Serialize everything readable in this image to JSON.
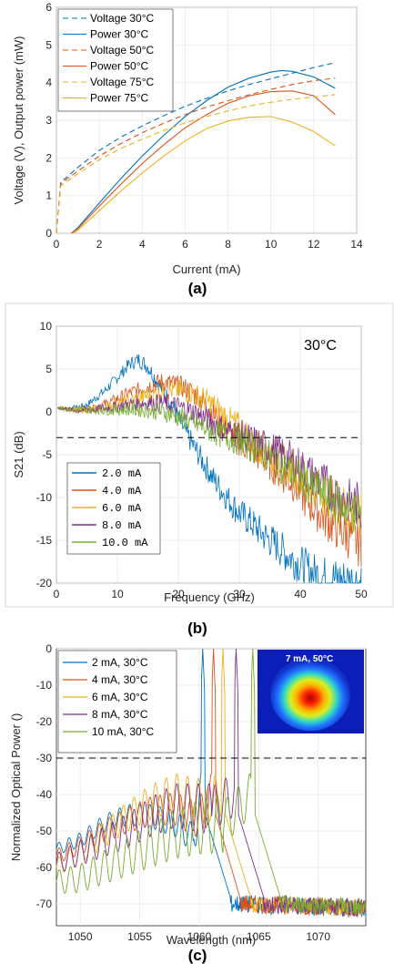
{
  "chart_data": [
    {
      "type": "line",
      "panel_label": "(a)",
      "xlabel": "Current (mA)",
      "ylabel": "Voltage (V), Output power (mW)",
      "xlim": [
        0,
        14
      ],
      "ylim": [
        0,
        6
      ],
      "xticks": [
        "0",
        "2",
        "4",
        "6",
        "8",
        "10",
        "12",
        "14"
      ],
      "yticks": [
        "0",
        "1",
        "2",
        "3",
        "4",
        "5",
        "6"
      ],
      "grid": true,
      "legend_position": "top-left",
      "series": [
        {
          "name": "Voltage 30°C",
          "color": "#0072BD",
          "dash": true,
          "x": [
            0,
            0.2,
            0.5,
            1,
            2,
            3,
            4,
            5,
            6,
            7,
            8,
            9,
            10,
            11,
            12,
            13
          ],
          "y": [
            0,
            1.35,
            1.5,
            1.75,
            2.2,
            2.55,
            2.85,
            3.12,
            3.37,
            3.58,
            3.78,
            3.95,
            4.1,
            4.25,
            4.4,
            4.53
          ]
        },
        {
          "name": "Power 30°C",
          "color": "#0072BD",
          "dash": false,
          "x": [
            0.7,
            1,
            2,
            3,
            4,
            5,
            6,
            7,
            8,
            9,
            10,
            10.5,
            11,
            12,
            13
          ],
          "y": [
            0,
            0.15,
            0.8,
            1.45,
            2.05,
            2.6,
            3.1,
            3.52,
            3.88,
            4.12,
            4.28,
            4.32,
            4.3,
            4.15,
            3.85
          ]
        },
        {
          "name": "Voltage 50°C",
          "color": "#D95319",
          "dash": true,
          "x": [
            0,
            0.2,
            0.5,
            1,
            2,
            3,
            4,
            5,
            6,
            7,
            8,
            9,
            10,
            11,
            12,
            13
          ],
          "y": [
            0,
            1.3,
            1.45,
            1.65,
            2.05,
            2.38,
            2.67,
            2.92,
            3.15,
            3.35,
            3.52,
            3.68,
            3.82,
            3.95,
            4.05,
            4.12
          ]
        },
        {
          "name": "Power 50°C",
          "color": "#D95319",
          "dash": false,
          "x": [
            0.7,
            1,
            2,
            3,
            4,
            5,
            6,
            7,
            8,
            9,
            10,
            11,
            12,
            13
          ],
          "y": [
            0,
            0.12,
            0.72,
            1.3,
            1.85,
            2.35,
            2.8,
            3.15,
            3.45,
            3.65,
            3.76,
            3.78,
            3.65,
            3.15
          ]
        },
        {
          "name": "Voltage 75°C",
          "color": "#EDB120",
          "dash": true,
          "x": [
            0,
            0.2,
            0.5,
            1,
            2,
            3,
            4,
            5,
            6,
            7,
            8,
            9,
            10,
            11,
            12,
            13
          ],
          "y": [
            0,
            1.25,
            1.38,
            1.58,
            1.95,
            2.25,
            2.5,
            2.73,
            2.93,
            3.1,
            3.25,
            3.38,
            3.48,
            3.56,
            3.62,
            3.68
          ]
        },
        {
          "name": "Power 75°C",
          "color": "#EDB120",
          "dash": false,
          "x": [
            0.8,
            1,
            2,
            3,
            4,
            5,
            6,
            7,
            8,
            9,
            10,
            11,
            12,
            13
          ],
          "y": [
            0,
            0.08,
            0.6,
            1.12,
            1.6,
            2.05,
            2.45,
            2.78,
            2.98,
            3.08,
            3.1,
            2.95,
            2.7,
            2.32
          ]
        }
      ]
    },
    {
      "type": "line",
      "panel_label": "(b)",
      "xlabel": "Frequency (GHz)",
      "ylabel": "S21 (dB)",
      "annotation": "30°C",
      "xlim": [
        0,
        50
      ],
      "ylim": [
        -20,
        10
      ],
      "xticks": [
        "0",
        "10",
        "20",
        "30",
        "40",
        "50"
      ],
      "yticks": [
        "-20",
        "-15",
        "-10",
        "-5",
        "0",
        "5",
        "10"
      ],
      "grid": true,
      "reference_line_y": -3,
      "legend_position": "bottom-left",
      "series": [
        {
          "name": "2.0 mA",
          "color": "#0072BD",
          "x": [
            0,
            2,
            5,
            8,
            10,
            12,
            13.5,
            15,
            17,
            19,
            20,
            22,
            24,
            26,
            28,
            30,
            32,
            34,
            36,
            38,
            40,
            42,
            44,
            46,
            48,
            50
          ],
          "y": [
            0.5,
            0.3,
            0.8,
            2.5,
            4.0,
            5.6,
            6.1,
            5.3,
            3.0,
            0.7,
            -0.8,
            -3.4,
            -5.8,
            -8.1,
            -10.0,
            -11.8,
            -13.0,
            -14.4,
            -15.5,
            -16.8,
            -17.8,
            -18.8,
            -19.3,
            -19.6,
            -19.8,
            -20
          ]
        },
        {
          "name": "4.0 mA",
          "color": "#D95319",
          "x": [
            0,
            3,
            6,
            9,
            12,
            15,
            17,
            19,
            21,
            23,
            25,
            27,
            29,
            31,
            33,
            35,
            37,
            39,
            41,
            43,
            45,
            47,
            50
          ],
          "y": [
            0.5,
            0.2,
            0.4,
            1.2,
            2.2,
            3.0,
            3.5,
            3.3,
            2.8,
            1.9,
            0.5,
            -1.5,
            -2.8,
            -4.0,
            -5.0,
            -6.0,
            -7.3,
            -8.4,
            -10.3,
            -11.7,
            -13.0,
            -14.0,
            -15.5
          ]
        },
        {
          "name": "6.0 mA",
          "color": "#EDB120",
          "x": [
            0,
            3,
            6,
            9,
            12,
            15,
            18,
            20,
            22,
            24,
            26,
            28,
            30,
            32,
            34,
            36,
            38,
            40,
            42,
            44,
            46,
            48,
            50
          ],
          "y": [
            0.5,
            0.2,
            0.3,
            0.8,
            1.3,
            1.9,
            2.4,
            2.5,
            2.2,
            1.6,
            0.6,
            -0.8,
            -1.8,
            -3.2,
            -4.4,
            -5.3,
            -6.2,
            -7.4,
            -8.5,
            -9.5,
            -10.5,
            -11.5,
            -12.5
          ]
        },
        {
          "name": "8.0 mA",
          "color": "#7E2F8E",
          "x": [
            0,
            3,
            6,
            9,
            12,
            15,
            18,
            20,
            22,
            24,
            26,
            28,
            30,
            32,
            34,
            36,
            38,
            40,
            42,
            44,
            46,
            48,
            50
          ],
          "y": [
            0.5,
            0.2,
            0.3,
            0.5,
            0.9,
            1.1,
            1.0,
            0.6,
            0.1,
            -0.6,
            -1.4,
            -2.2,
            -2.6,
            -3.3,
            -4.0,
            -4.6,
            -5.4,
            -6.4,
            -7.5,
            -8.5,
            -9.7,
            -10.5,
            -11.0
          ]
        },
        {
          "name": "10.0 mA",
          "color": "#77AC30",
          "x": [
            0,
            3,
            6,
            9,
            12,
            15,
            18,
            20,
            22,
            24,
            26,
            28,
            30,
            32,
            34,
            36,
            38,
            40,
            42,
            44,
            46,
            48,
            50
          ],
          "y": [
            0.5,
            0.2,
            0.2,
            0.2,
            0.3,
            0.2,
            -0.1,
            -0.6,
            -1.2,
            -1.8,
            -2.4,
            -2.9,
            -3.4,
            -4.0,
            -4.8,
            -5.8,
            -6.8,
            -7.7,
            -8.8,
            -9.7,
            -10.5,
            -11.5,
            -12.0
          ]
        }
      ]
    },
    {
      "type": "line",
      "panel_label": "(c)",
      "xlabel": "Wavelength (nm)",
      "ylabel": "Normalized Optical Power ()",
      "inset_label": "7 mA, 50°C",
      "xlim": [
        1048,
        1074
      ],
      "ylim": [
        -76,
        0
      ],
      "xticks": [
        "1050",
        "1055",
        "1060",
        "1065",
        "1070"
      ],
      "yticks": [
        "-70",
        "-60",
        "-50",
        "-40",
        "-30",
        "-20",
        "-10",
        "0"
      ],
      "grid": true,
      "reference_line_y": -30,
      "legend_position": "top-left",
      "series": [
        {
          "name": "2 mA, 30°C",
          "color": "#0072BD",
          "envelope": {
            "x": [
              1048,
              1050,
              1052,
              1054,
              1056,
              1058,
              1059.5
            ],
            "y": [
              -55,
              -52.5,
              -48,
              -45.5,
              -46,
              -48,
              -52
            ]
          },
          "period": 0.85,
          "ripple": 4,
          "peak_x": 1060.3,
          "peak_y": 0,
          "edge_x": 1062.6
        },
        {
          "name": "4 mA, 30°C",
          "color": "#D95319",
          "envelope": {
            "x": [
              1048,
              1050,
              1052,
              1054,
              1056,
              1058,
              1060
            ],
            "y": [
              -57,
              -54,
              -50,
              -47,
              -44.5,
              -44,
              -47
            ]
          },
          "period": 0.85,
          "ripple": 5,
          "peak_x": 1061.2,
          "peak_y": 0,
          "edge_x": 1063.4
        },
        {
          "name": "6 mA, 30°C",
          "color": "#EDB120",
          "envelope": {
            "x": [
              1048,
              1050,
              1052,
              1054,
              1056,
              1058,
              1060.5
            ],
            "y": [
              -60,
              -56,
              -51,
              -46,
              -42,
              -39.5,
              -42
            ]
          },
          "period": 0.9,
          "ripple": 6,
          "peak_x": 1062.0,
          "peak_y": 0,
          "edge_x": 1064.3
        },
        {
          "name": "8 mA, 30°C",
          "color": "#7E2F8E",
          "envelope": {
            "x": [
              1048,
              1050,
              1052,
              1054,
              1056,
              1058,
              1061
            ],
            "y": [
              -59,
              -56,
              -53,
              -50,
              -46,
              -43,
              -44
            ]
          },
          "period": 0.9,
          "ripple": 7,
          "peak_x": 1063.1,
          "peak_y": 0,
          "edge_x": 1065.4
        },
        {
          "name": "10 mA, 30°C",
          "color": "#77AC30",
          "envelope": {
            "x": [
              1048,
              1050,
              1052,
              1054,
              1056,
              1058,
              1060,
              1062
            ],
            "y": [
              -64,
              -63,
              -60,
              -57,
              -54,
              -51,
              -49,
              -48
            ]
          },
          "period": 0.95,
          "ripple": 8,
          "peak_x": 1064.5,
          "peak_y": 0,
          "edge_x": 1066.8
        }
      ]
    }
  ]
}
